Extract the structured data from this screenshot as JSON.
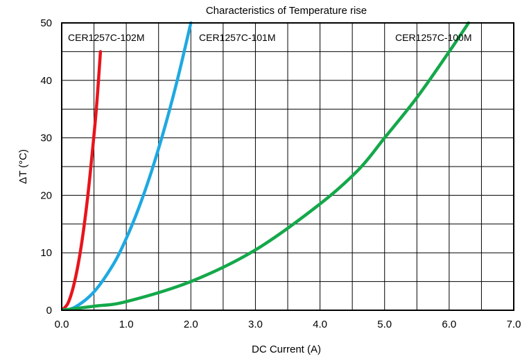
{
  "chart_data": {
    "type": "line",
    "title": "Characteristics of Temperature rise",
    "xlabel": "DC Current (A)",
    "ylabel": "ΔT (°C)",
    "xlim": [
      0,
      7
    ],
    "ylim": [
      0,
      50
    ],
    "x_ticks": [
      "0.0",
      "1.0",
      "2.0",
      "3.0",
      "4.0",
      "5.0",
      "6.0",
      "7.0"
    ],
    "y_ticks": [
      "0",
      "10",
      "20",
      "30",
      "40",
      "50"
    ],
    "grid": true,
    "series": [
      {
        "name": "CER1257C-102M",
        "color": "#e8141c",
        "x": [
          0.0,
          0.1,
          0.2,
          0.3,
          0.4,
          0.5,
          0.55,
          0.6
        ],
        "y": [
          0,
          1.3,
          5,
          11,
          19.5,
          30.5,
          37,
          45
        ]
      },
      {
        "name": "CER1257C-101M",
        "color": "#1ea9e1",
        "x": [
          0.0,
          0.2,
          0.5,
          0.8,
          1.0,
          1.2,
          1.4,
          1.6,
          1.8,
          2.0
        ],
        "y": [
          0,
          0.5,
          3.2,
          8,
          12.5,
          18,
          24.5,
          32,
          40.5,
          50
        ]
      },
      {
        "name": "CER1257C-100M",
        "color": "#14a84a",
        "x": [
          0.0,
          0.5,
          1.0,
          2.0,
          3.0,
          4.0,
          4.6,
          5.0,
          5.5,
          6.0,
          6.3
        ],
        "y": [
          0,
          0.7,
          1.5,
          5,
          10.5,
          18.5,
          24.5,
          30,
          37,
          45,
          50
        ]
      }
    ]
  }
}
